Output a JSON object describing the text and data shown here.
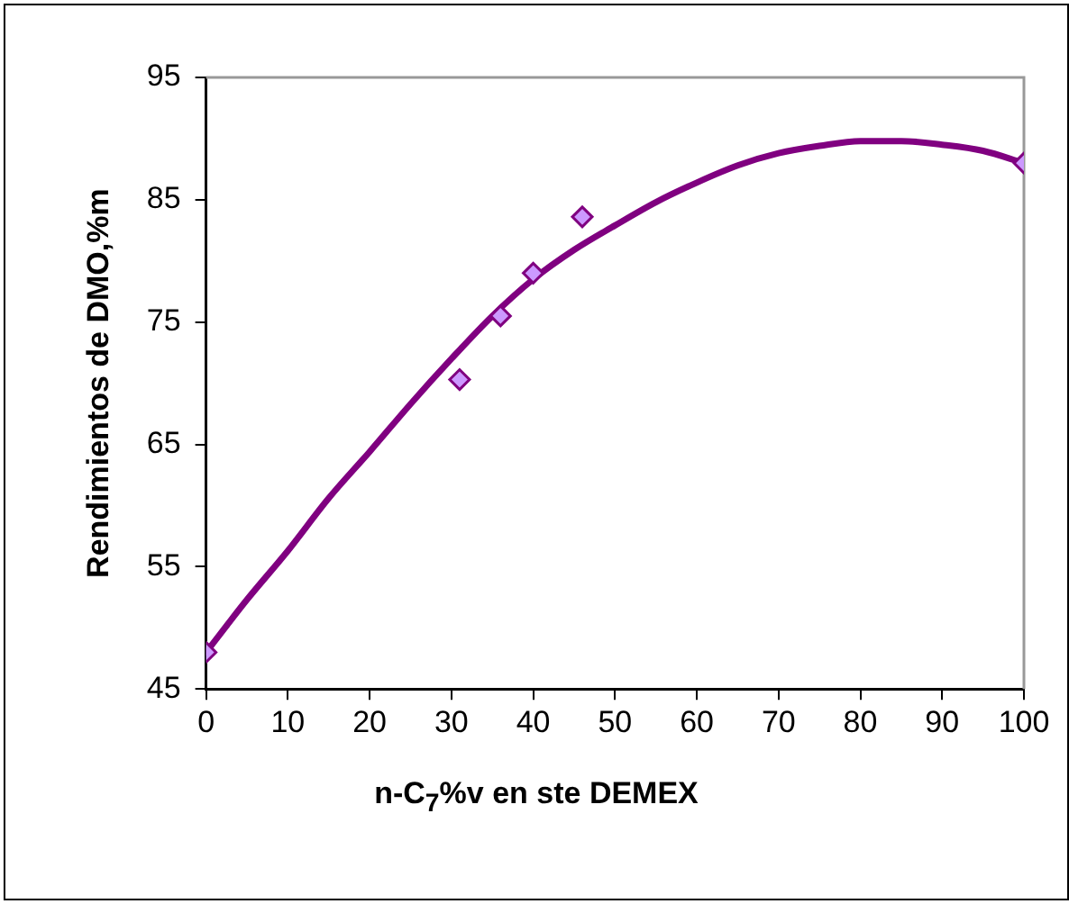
{
  "chart_data": {
    "type": "scatter",
    "xlabel": "n-C$_{7}$%v en ste DEMEX",
    "ylabel": "Rendimientos de DMO,%m",
    "xlim": [
      0,
      100
    ],
    "xticks": [
      0,
      10,
      20,
      30,
      40,
      50,
      60,
      70,
      80,
      90,
      100
    ],
    "ylim": [
      45,
      95
    ],
    "yticks": [
      45,
      55,
      65,
      75,
      85,
      95
    ],
    "grid": false,
    "legend": false,
    "series": [
      {
        "color": "#cc99ff",
        "marker": "diamond",
        "x": [
          0,
          31,
          36,
          40,
          46,
          100
        ],
        "values": [
          48,
          70.3,
          75.5,
          79,
          83.6,
          88
        ]
      },
      {
        "type": "line",
        "color": "#800080",
        "marker": "none",
        "line_style": "solid",
        "x": [
          0,
          5,
          10,
          15,
          20,
          25,
          30,
          35,
          40,
          45,
          50,
          55,
          60,
          65,
          70,
          75,
          80,
          85,
          90,
          95,
          100
        ],
        "values": [
          48,
          52.3,
          56.3,
          60.6,
          64.4,
          68.3,
          72,
          75.5,
          78.5,
          80.9,
          82.9,
          84.8,
          86.4,
          87.8,
          88.8,
          89.4,
          89.8,
          89.8,
          89.5,
          89.0,
          88
        ]
      }
    ]
  }
}
